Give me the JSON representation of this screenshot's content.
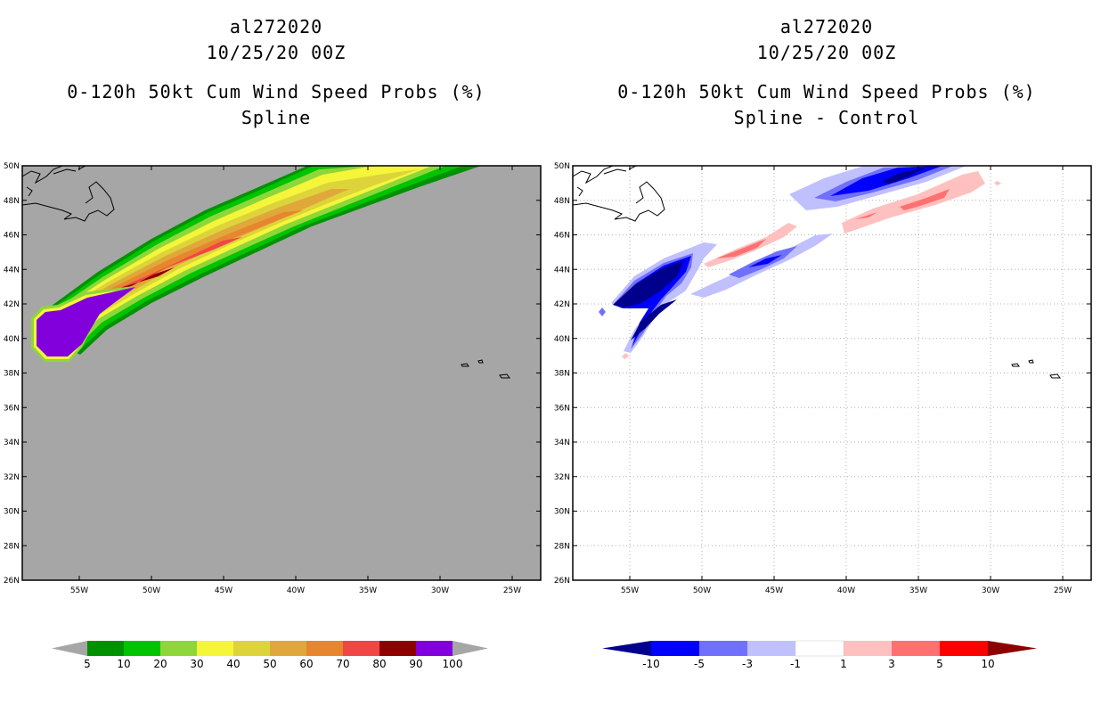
{
  "panels": {
    "left": {
      "storm_id": "al272020",
      "datetime": "10/25/20 00Z",
      "product": "0-120h 50kt Cum Wind Speed Probs (%)",
      "subtitle": "Spline"
    },
    "right": {
      "storm_id": "al272020",
      "datetime": "10/25/20 00Z",
      "product": "0-120h 50kt Cum Wind Speed Probs (%)",
      "subtitle": "Spline - Control"
    }
  },
  "axes": {
    "lat_labels": [
      "50N",
      "48N",
      "46N",
      "44N",
      "42N",
      "40N",
      "38N",
      "36N",
      "34N",
      "32N",
      "30N",
      "28N",
      "26N"
    ],
    "lon_labels": [
      "55W",
      "50W",
      "45W",
      "40W",
      "35W",
      "30W",
      "25W"
    ]
  },
  "colorbars": {
    "left": {
      "labels": [
        "5",
        "10",
        "20",
        "30",
        "40",
        "50",
        "60",
        "70",
        "80",
        "90",
        "100"
      ],
      "colors": [
        "#009100",
        "#00c400",
        "#8fd63a",
        "#f5f53a",
        "#dcd43a",
        "#e0a83a",
        "#e8852f",
        "#f04646",
        "#8c0000",
        "#8200dc"
      ],
      "extension_color": "#a6a6a6"
    },
    "right": {
      "labels": [
        "-10",
        "-5",
        "-3",
        "-1",
        "1",
        "3",
        "5",
        "10"
      ],
      "colors": [
        "#0000ff",
        "#7070ff",
        "#c0c0ff",
        "#ffffff",
        "#ffc0c0",
        "#ff7070",
        "#ff0000"
      ],
      "low_extension_color": "#00008c",
      "high_extension_color": "#8c0000"
    }
  },
  "map_colors": {
    "background_left": "#a6a6a6",
    "background_right": "#ffffff"
  }
}
